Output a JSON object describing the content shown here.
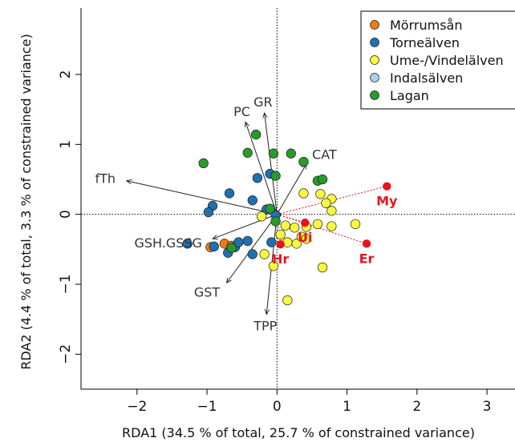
{
  "chart_data": {
    "type": "scatter",
    "xlabel": "RDA1 (34.5 % of total, 25.7 % of constrained variance)",
    "ylabel": "RDA2 (4.4 % of total, 3.3 % of constrained variance)",
    "xlim": [
      -2.8,
      3.4
    ],
    "ylim": [
      -2.5,
      2.95
    ],
    "xticks": [
      -2,
      -1,
      0,
      1,
      2,
      3
    ],
    "yticks": [
      -2,
      -1,
      0,
      1,
      2
    ],
    "xtick_labels": [
      "−2",
      "−1",
      "0",
      "1",
      "2",
      "3"
    ],
    "ytick_labels": [
      "−2",
      "−1",
      "0",
      "1",
      "2"
    ],
    "reference_lines": {
      "x": 0,
      "y": 0,
      "style": "dotted"
    },
    "legend": {
      "position": "top-right",
      "entries": [
        {
          "label": "Mörrumsån",
          "color": "#f07c10"
        },
        {
          "label": "Torneälven",
          "color": "#2070b0"
        },
        {
          "label": "Ume-/Vindelälven",
          "color": "#f8f840"
        },
        {
          "label": "Indalsälven",
          "color": "#a8d0e8"
        },
        {
          "label": "Lagan",
          "color": "#2a9a2a"
        }
      ]
    },
    "series": [
      {
        "name": "Mörrumsån",
        "color": "#f07c10",
        "points": [
          [
            -0.75,
            -0.42
          ],
          [
            -0.65,
            -0.45
          ],
          [
            -0.95,
            -0.47
          ]
        ]
      },
      {
        "name": "Torneälven",
        "color": "#2070b0",
        "points": [
          [
            -1.28,
            -0.42
          ],
          [
            -0.9,
            -0.46
          ],
          [
            -0.7,
            -0.55
          ],
          [
            -0.6,
            -0.47
          ],
          [
            -0.55,
            -0.4
          ],
          [
            -0.42,
            -0.38
          ],
          [
            -0.08,
            -0.4
          ],
          [
            -0.35,
            -0.57
          ],
          [
            -0.68,
            0.3
          ],
          [
            -0.92,
            0.12
          ],
          [
            -0.98,
            0.03
          ],
          [
            -0.35,
            0.2
          ],
          [
            -0.28,
            0.52
          ],
          [
            -0.15,
            0.07
          ],
          [
            -0.02,
            -0.01
          ],
          [
            -0.1,
            0.58
          ]
        ]
      },
      {
        "name": "Ume-/Vindelälven",
        "color": "#f8f840",
        "points": [
          [
            0.38,
            0.3
          ],
          [
            0.62,
            0.29
          ],
          [
            0.78,
            0.22
          ],
          [
            0.7,
            0.16
          ],
          [
            0.78,
            0.05
          ],
          [
            1.12,
            -0.14
          ],
          [
            0.78,
            -0.17
          ],
          [
            0.58,
            -0.14
          ],
          [
            0.42,
            -0.18
          ],
          [
            0.25,
            -0.19
          ],
          [
            0.12,
            -0.16
          ],
          [
            0.05,
            -0.29
          ],
          [
            0.15,
            -0.4
          ],
          [
            0.28,
            -0.42
          ],
          [
            0.35,
            -0.32
          ],
          [
            0.42,
            -0.35
          ],
          [
            -0.18,
            -0.57
          ],
          [
            -0.05,
            -0.74
          ],
          [
            0.65,
            -0.76
          ],
          [
            0.15,
            -1.23
          ],
          [
            -0.22,
            -0.03
          ]
        ]
      },
      {
        "name": "Indalsälven",
        "color": "#a8d0e8",
        "points": []
      },
      {
        "name": "Lagan",
        "color": "#2a9a2a",
        "points": [
          [
            -1.05,
            0.73
          ],
          [
            -0.42,
            0.88
          ],
          [
            -0.3,
            1.14
          ],
          [
            -0.05,
            0.87
          ],
          [
            0.2,
            0.87
          ],
          [
            0.38,
            0.75
          ],
          [
            0.58,
            0.48
          ],
          [
            0.65,
            0.5
          ],
          [
            -0.1,
            0.08
          ],
          [
            -0.65,
            -0.48
          ],
          [
            -0.02,
            0.55
          ],
          [
            -0.02,
            -0.1
          ]
        ]
      }
    ],
    "vectors": [
      {
        "label": "GR",
        "x": -0.18,
        "y": 1.45
      },
      {
        "label": "PC",
        "x": -0.45,
        "y": 1.32
      },
      {
        "label": "CAT",
        "x": 0.42,
        "y": 0.72
      },
      {
        "label": "fTh",
        "x": -2.15,
        "y": 0.48
      },
      {
        "label": "GSH.GSSG",
        "x": -0.92,
        "y": -0.35
      },
      {
        "label": "GST",
        "x": -0.72,
        "y": -0.98
      },
      {
        "label": "TPP",
        "x": -0.15,
        "y": -1.43
      }
    ],
    "centroids": [
      {
        "label": "My",
        "x": 1.57,
        "y": 0.4
      },
      {
        "label": "Er",
        "x": 1.28,
        "y": -0.42
      },
      {
        "label": "Ui",
        "x": 0.4,
        "y": -0.12
      },
      {
        "label": "Hr",
        "x": 0.05,
        "y": -0.43
      }
    ],
    "centroid_color": "#e8141c"
  }
}
